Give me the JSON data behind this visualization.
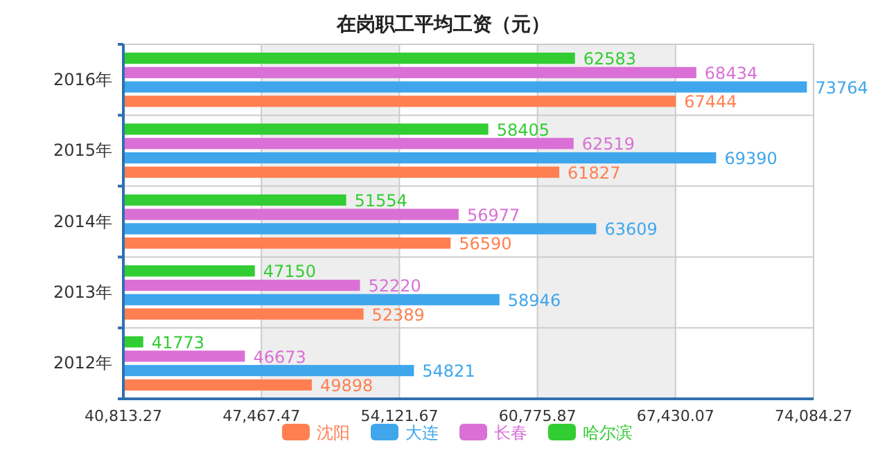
{
  "chart_data": {
    "type": "bar",
    "orientation": "horizontal",
    "title": "在岗职工平均工资（元）",
    "categories": [
      "2016年",
      "2015年",
      "2014年",
      "2013年",
      "2012年"
    ],
    "series": [
      {
        "name": "沈阳",
        "color": "#ff7f50",
        "values": [
          67444,
          61827,
          56590,
          52389,
          49898
        ]
      },
      {
        "name": "大连",
        "color": "#3fa6ec",
        "values": [
          73764,
          69390,
          63609,
          58946,
          54821
        ]
      },
      {
        "name": "长春",
        "color": "#da70d6",
        "values": [
          68434,
          62519,
          56977,
          52220,
          46673
        ]
      },
      {
        "name": "哈尔滨",
        "color": "#32cd32",
        "values": [
          62583,
          58405,
          51554,
          47150,
          41773
        ]
      }
    ],
    "xlim": [
      40813.27,
      74084.27
    ],
    "xticks": [
      {
        "value": 40813.27,
        "label": "40,813.27"
      },
      {
        "value": 47467.47,
        "label": "47,467.47"
      },
      {
        "value": 54121.67,
        "label": "54,121.67"
      },
      {
        "value": 60775.87,
        "label": "60,775.87"
      },
      {
        "value": 67430.07,
        "label": "67,430.07"
      },
      {
        "value": 74084.27,
        "label": "74,084.27"
      }
    ],
    "grid": true,
    "legend": "bottom",
    "data_labels": true
  }
}
